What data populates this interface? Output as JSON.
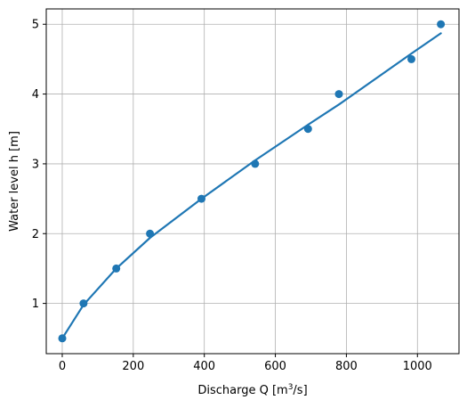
{
  "chart_data": {
    "type": "scatter",
    "xlabel": "Discharge Q [m³/s]",
    "xlabel_parts": {
      "main": "Discharge Q [m",
      "sup": "3",
      "tail": "/s]"
    },
    "ylabel": "Water level h [m]",
    "xlim": [
      -45,
      1117
    ],
    "ylim": [
      0.28,
      5.22
    ],
    "xticks": [
      0,
      200,
      400,
      600,
      800,
      1000
    ],
    "yticks": [
      1,
      2,
      3,
      4,
      5
    ],
    "grid": true,
    "colors": {
      "series": "#1f77b4",
      "grid": "#b0b0b0",
      "axes": "#000000"
    },
    "series": [
      {
        "type": "scatter",
        "points": [
          {
            "x": 0,
            "y": 0.5
          },
          {
            "x": 60,
            "y": 1.0
          },
          {
            "x": 152,
            "y": 1.5
          },
          {
            "x": 247,
            "y": 2.0
          },
          {
            "x": 392,
            "y": 2.5
          },
          {
            "x": 543,
            "y": 3.0
          },
          {
            "x": 692,
            "y": 3.5
          },
          {
            "x": 779,
            "y": 4.0
          },
          {
            "x": 983,
            "y": 4.5
          },
          {
            "x": 1066,
            "y": 5.0
          }
        ]
      },
      {
        "type": "line",
        "points": [
          {
            "x": 0,
            "y": 0.5
          },
          {
            "x": 60,
            "y": 0.98
          },
          {
            "x": 152,
            "y": 1.5
          },
          {
            "x": 247,
            "y": 1.94
          },
          {
            "x": 392,
            "y": 2.5
          },
          {
            "x": 543,
            "y": 3.05
          },
          {
            "x": 692,
            "y": 3.56
          },
          {
            "x": 779,
            "y": 3.85
          },
          {
            "x": 983,
            "y": 4.58
          },
          {
            "x": 1066,
            "y": 4.87
          }
        ]
      }
    ]
  }
}
